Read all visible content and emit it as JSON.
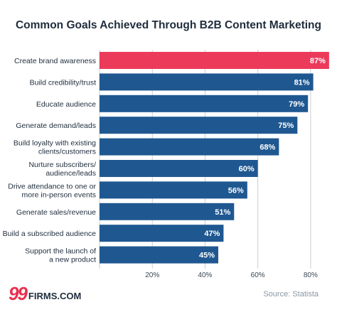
{
  "chart_data": {
    "type": "bar",
    "orientation": "horizontal",
    "title": "Common Goals Achieved Through B2B Content Marketing",
    "categories": [
      [
        "Create brand awareness"
      ],
      [
        "Build credibility/trust"
      ],
      [
        "Educate audience"
      ],
      [
        "Generate demand/leads"
      ],
      [
        "Build loyalty with existing",
        "clients/customers"
      ],
      [
        "Nurture subscribers/",
        "audience/leads"
      ],
      [
        "Drive attendance to one or",
        "more in-person events"
      ],
      [
        "Generate sales/revenue"
      ],
      [
        "Build a subscribed audience"
      ],
      [
        "Support the launch of",
        "a new product"
      ]
    ],
    "values": [
      87,
      81,
      79,
      75,
      68,
      60,
      56,
      51,
      47,
      45
    ],
    "value_labels": [
      "87%",
      "81%",
      "79%",
      "75%",
      "68%",
      "60%",
      "56%",
      "51%",
      "47%",
      "45%"
    ],
    "xlim": [
      0,
      90
    ],
    "xticks": [
      20,
      40,
      60,
      80
    ],
    "xtick_labels": [
      "20%",
      "40%",
      "60%",
      "80%"
    ],
    "grid": true,
    "colors": {
      "highlight": "#ec3a5b",
      "bar": "#1f5891",
      "grid": "#c9ced4",
      "text": "#1f2d3d"
    }
  },
  "footer": {
    "logo_number": "99",
    "logo_text": "FIRMS.COM",
    "source": "Source: Statista"
  }
}
